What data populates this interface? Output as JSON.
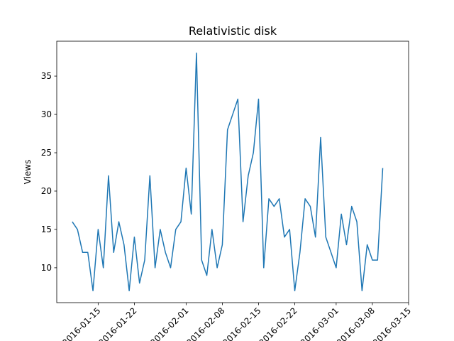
{
  "chart_data": {
    "type": "line",
    "title": "Relativistic disk",
    "xlabel": "",
    "ylabel": "Views",
    "x_type": "date",
    "grid": false,
    "line_color": "#1f77b4",
    "ylim": [
      5.45,
      39.55
    ],
    "xlim": [
      "2016-01-07",
      "2016-03-15"
    ],
    "x_ticks": [
      "2016-01-15",
      "2016-01-22",
      "2016-02-01",
      "2016-02-08",
      "2016-02-15",
      "2016-02-22",
      "2016-03-01",
      "2016-03-08",
      "2016-03-15"
    ],
    "y_ticks": [
      10,
      15,
      20,
      25,
      30,
      35
    ],
    "x": [
      "2016-01-10",
      "2016-01-11",
      "2016-01-12",
      "2016-01-13",
      "2016-01-14",
      "2016-01-15",
      "2016-01-16",
      "2016-01-17",
      "2016-01-18",
      "2016-01-19",
      "2016-01-20",
      "2016-01-21",
      "2016-01-22",
      "2016-01-23",
      "2016-01-24",
      "2016-01-25",
      "2016-01-26",
      "2016-01-27",
      "2016-01-28",
      "2016-01-29",
      "2016-01-30",
      "2016-01-31",
      "2016-02-01",
      "2016-02-02",
      "2016-02-03",
      "2016-02-04",
      "2016-02-05",
      "2016-02-06",
      "2016-02-07",
      "2016-02-08",
      "2016-02-09",
      "2016-02-10",
      "2016-02-11",
      "2016-02-12",
      "2016-02-13",
      "2016-02-14",
      "2016-02-15",
      "2016-02-16",
      "2016-02-17",
      "2016-02-18",
      "2016-02-19",
      "2016-02-20",
      "2016-02-21",
      "2016-02-22",
      "2016-02-23",
      "2016-02-24",
      "2016-02-25",
      "2016-02-26",
      "2016-02-27",
      "2016-02-28",
      "2016-02-29",
      "2016-03-01",
      "2016-03-02",
      "2016-03-03",
      "2016-03-04",
      "2016-03-05",
      "2016-03-06",
      "2016-03-07",
      "2016-03-08",
      "2016-03-09",
      "2016-03-10"
    ],
    "y": [
      16,
      15,
      12,
      12,
      7,
      15,
      10,
      22,
      12,
      16,
      13,
      7,
      14,
      8,
      11,
      22,
      10,
      15,
      12,
      10,
      15,
      16,
      23,
      17,
      38,
      11,
      9,
      15,
      10,
      13,
      28,
      30,
      32,
      16,
      22,
      25,
      32,
      10,
      19,
      18,
      19,
      14,
      15,
      7,
      12,
      19,
      18,
      14,
      27,
      14,
      12,
      10,
      17,
      13,
      18,
      16,
      7,
      13,
      11,
      11,
      23
    ]
  }
}
